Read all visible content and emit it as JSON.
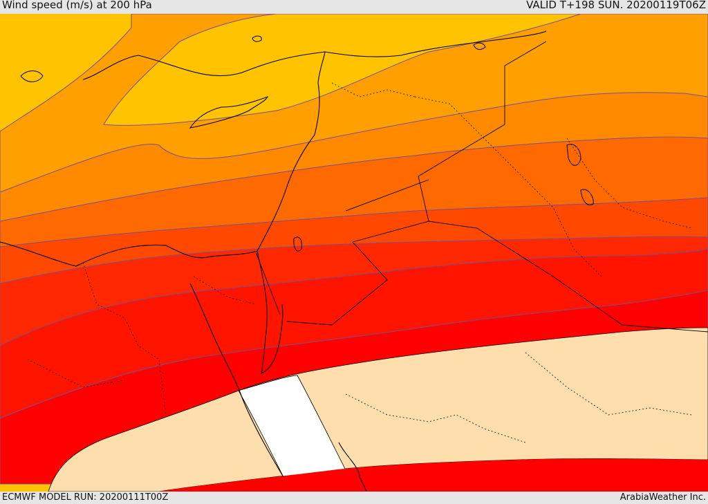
{
  "header": {
    "title": "Wind speed (m/s) at 200 hPa",
    "valid": "VALID T+198 SUN. 20200119T06Z"
  },
  "footer": {
    "model_run": "ECMWF MODEL RUN: 20200111T00Z",
    "credit": "ArabiaWeather Inc."
  },
  "colors": {
    "band_1": "#fde000",
    "band_2": "#ffc300",
    "band_3": "#ffa000",
    "band_4": "#ff8a00",
    "band_5": "#ff6a00",
    "band_6": "#ff4800",
    "band_7": "#ff2800",
    "band_8": "#ff0000",
    "calm": "#ffdead",
    "no_data": "#ffffff",
    "contour_line": "#7a4f8a",
    "coast": "#000000"
  }
}
